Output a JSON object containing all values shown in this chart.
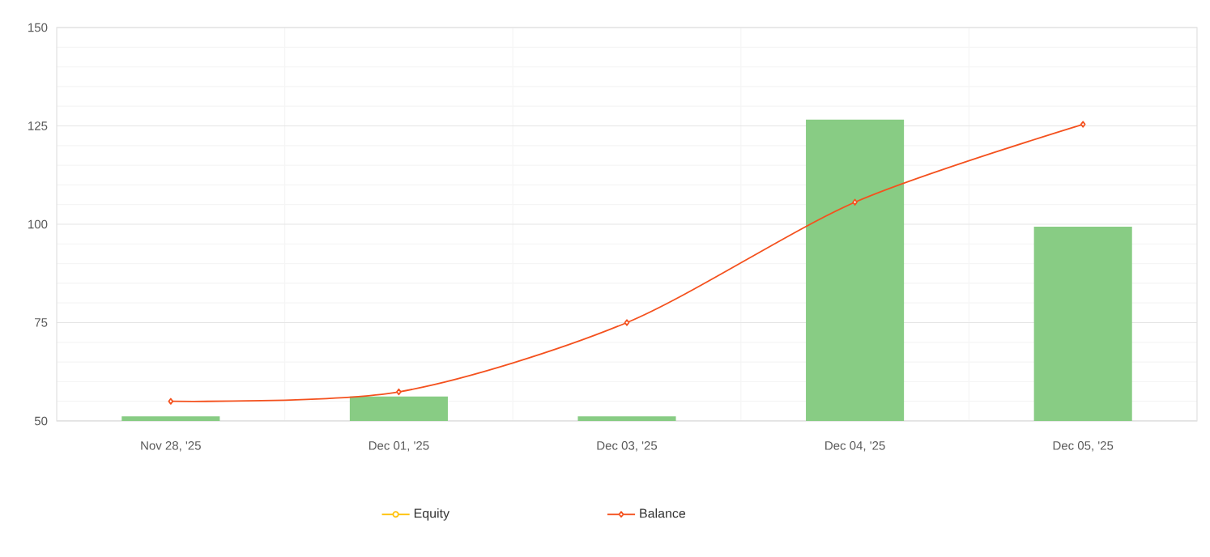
{
  "chart_data": {
    "type": "bar",
    "categories": [
      "Nov 28, '25",
      "Dec 01, '25",
      "Dec 03, '25",
      "Dec 04, '25",
      "Dec 05, '25"
    ],
    "series": [
      {
        "color": "#88cc84",
        "values": [
          51.2,
          56.2,
          51.2,
          126.6,
          99.4
        ]
      },
      {
        "type": "line",
        "name": "Equity",
        "color": "#ffc107",
        "marker": "circle",
        "values": [
          null,
          null,
          null,
          null,
          null
        ]
      },
      {
        "type": "line",
        "name": "Balance",
        "color": "#f4511e",
        "marker": "diamond",
        "values": [
          55,
          57.4,
          75,
          105.6,
          125.4
        ]
      }
    ],
    "ylim": [
      50,
      150
    ],
    "yticks": [
      50,
      75,
      100,
      125,
      150
    ],
    "grid": true,
    "legend": "bottom"
  }
}
